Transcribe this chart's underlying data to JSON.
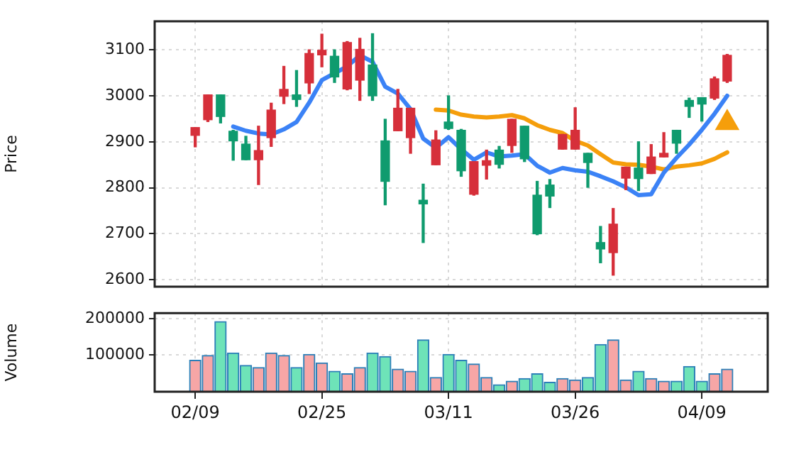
{
  "chart_data": [
    {
      "type": "candlestick",
      "ylabel": "Price",
      "grid": true,
      "tick_labels": "y",
      "categories": [
        null,
        null,
        null,
        null,
        null,
        null,
        null,
        null,
        null,
        null,
        null,
        null,
        null,
        null,
        null,
        null,
        null,
        null,
        null,
        null,
        null,
        null,
        null,
        null,
        null,
        null,
        null,
        null,
        null,
        null,
        null,
        null,
        null,
        null,
        null,
        null,
        null,
        null,
        null,
        null,
        null,
        null,
        null
      ],
      "ohlc": [
        [
          2914,
          2931,
          2889,
          2931
        ],
        [
          2948,
          3002,
          2944,
          3002
        ],
        [
          3002,
          3002,
          2941,
          2955
        ],
        [
          2923,
          2925,
          2860,
          2902
        ],
        [
          2895,
          2912,
          2861,
          2861
        ],
        [
          2861,
          2934,
          2807,
          2881
        ],
        [
          2909,
          2984,
          2890,
          2969
        ],
        [
          2999,
          3064,
          2983,
          3014
        ],
        [
          3002,
          3055,
          2977,
          2992
        ],
        [
          3028,
          3100,
          3005,
          3092
        ],
        [
          3089,
          3134,
          3063,
          3099
        ],
        [
          3086,
          3100,
          3029,
          3041
        ],
        [
          3015,
          3118,
          3013,
          3116
        ],
        [
          3034,
          3125,
          2990,
          3101
        ],
        [
          3067,
          3135,
          2990,
          3000
        ],
        [
          2902,
          2949,
          2763,
          2814
        ],
        [
          2924,
          3014,
          2924,
          2973
        ],
        [
          2909,
          2973,
          2875,
          2973
        ],
        [
          2773,
          2808,
          2681,
          2765
        ],
        [
          2850,
          2924,
          2850,
          2904
        ],
        [
          2943,
          3000,
          2927,
          2929
        ],
        [
          2925,
          2927,
          2825,
          2837
        ],
        [
          2786,
          2857,
          2784,
          2857
        ],
        [
          2849,
          2882,
          2819,
          2859
        ],
        [
          2882,
          2890,
          2843,
          2851
        ],
        [
          2892,
          2949,
          2877,
          2949
        ],
        [
          2934,
          2934,
          2857,
          2863
        ],
        [
          2784,
          2814,
          2698,
          2700
        ],
        [
          2806,
          2818,
          2757,
          2782
        ],
        [
          2884,
          2916,
          2884,
          2916
        ],
        [
          2884,
          2974,
          2884,
          2925
        ],
        [
          2875,
          2875,
          2801,
          2855
        ],
        [
          2681,
          2716,
          2637,
          2667
        ],
        [
          2659,
          2755,
          2610,
          2721
        ],
        [
          2821,
          2845,
          2796,
          2845
        ],
        [
          2843,
          2900,
          2794,
          2820
        ],
        [
          2831,
          2894,
          2831,
          2867
        ],
        [
          2867,
          2920,
          2867,
          2875
        ],
        [
          2925,
          2925,
          2875,
          2897
        ],
        [
          2990,
          2995,
          2953,
          2977
        ],
        [
          2996,
          2996,
          2945,
          2982
        ],
        [
          2995,
          3041,
          2992,
          3037
        ],
        [
          3032,
          3090,
          3029,
          3088
        ]
      ],
      "colors": [
        "#d62f3a",
        "#d62f3a",
        "#0f9b6e",
        "#0f9b6e",
        "#0f9b6e",
        "#d62f3a",
        "#d62f3a",
        "#d62f3a",
        "#0f9b6e",
        "#d62f3a",
        "#d62f3a",
        "#0f9b6e",
        "#d62f3a",
        "#d62f3a",
        "#0f9b6e",
        "#0f9b6e",
        "#d62f3a",
        "#d62f3a",
        "#0f9b6e",
        "#d62f3a",
        "#0f9b6e",
        "#0f9b6e",
        "#d62f3a",
        "#d62f3a",
        "#0f9b6e",
        "#d62f3a",
        "#0f9b6e",
        "#0f9b6e",
        "#0f9b6e",
        "#d62f3a",
        "#d62f3a",
        "#0f9b6e",
        "#0f9b6e",
        "#d62f3a",
        "#d62f3a",
        "#0f9b6e",
        "#d62f3a",
        "#d62f3a",
        "#0f9b6e",
        "#0f9b6e",
        "#0f9b6e",
        "#d62f3a",
        "#d62f3a"
      ],
      "series": [
        {
          "type": "line",
          "color": "#3b82f6",
          "values": [
            null,
            null,
            null,
            2933,
            2924,
            2918,
            2916,
            2927,
            2943,
            2985,
            3034,
            3049,
            3064,
            3088,
            3074,
            3020,
            3005,
            2971,
            2907,
            2887,
            2910,
            2884,
            2861,
            2877,
            2868,
            2870,
            2873,
            2848,
            2833,
            2843,
            2838,
            2835,
            2825,
            2814,
            2801,
            2784,
            2786,
            2833,
            2865,
            2894,
            2926,
            2961,
            3000
          ]
        },
        {
          "type": "line",
          "color": "#f59e0b",
          "values": [
            null,
            null,
            null,
            null,
            null,
            null,
            null,
            null,
            null,
            null,
            null,
            null,
            null,
            null,
            null,
            null,
            null,
            null,
            null,
            2970,
            2968,
            2959,
            2955,
            2953,
            2955,
            2958,
            2951,
            2936,
            2926,
            2919,
            2902,
            2892,
            2873,
            2855,
            2851,
            2850,
            2846,
            2840,
            2846,
            2849,
            2853,
            2863,
            2877
          ]
        },
        {
          "type": "scatter",
          "marker": "triangle",
          "color": "#f59e0b",
          "values": [
            null,
            null,
            null,
            null,
            null,
            null,
            null,
            null,
            null,
            null,
            null,
            null,
            null,
            null,
            null,
            null,
            null,
            null,
            null,
            null,
            null,
            null,
            null,
            null,
            null,
            null,
            null,
            null,
            null,
            null,
            null,
            null,
            null,
            null,
            null,
            null,
            null,
            null,
            null,
            null,
            null,
            null,
            2941
          ]
        }
      ],
      "ylim": [
        2585,
        3162
      ],
      "yticks": [
        2600,
        2700,
        2800,
        2900,
        3000,
        3100
      ]
    },
    {
      "type": "bar",
      "ylabel": "Volume",
      "grid": true,
      "categories": [
        "02/09",
        null,
        null,
        null,
        null,
        null,
        null,
        null,
        null,
        null,
        "02/25",
        null,
        null,
        null,
        null,
        null,
        null,
        null,
        null,
        null,
        "03/11",
        null,
        null,
        null,
        null,
        null,
        null,
        null,
        null,
        null,
        "03/26",
        null,
        null,
        null,
        null,
        null,
        null,
        null,
        null,
        null,
        "04/09",
        null,
        null
      ],
      "values": [
        86000,
        99000,
        192000,
        106000,
        72000,
        66000,
        106000,
        99000,
        66000,
        102000,
        79000,
        56000,
        49000,
        66000,
        106000,
        96000,
        62000,
        56000,
        142000,
        39000,
        102000,
        86000,
        76000,
        39000,
        19000,
        29000,
        36000,
        49000,
        26000,
        36000,
        32000,
        39000,
        129000,
        142000,
        32000,
        56000,
        36000,
        29000,
        29000,
        69000,
        29000,
        49000,
        62000
      ],
      "colors": [
        "#f7a6a6",
        "#f7a6a6",
        "#6ee3b8",
        "#6ee3b8",
        "#6ee3b8",
        "#f7a6a6",
        "#f7a6a6",
        "#f7a6a6",
        "#6ee3b8",
        "#f7a6a6",
        "#f7a6a6",
        "#6ee3b8",
        "#f7a6a6",
        "#f7a6a6",
        "#6ee3b8",
        "#6ee3b8",
        "#f7a6a6",
        "#f7a6a6",
        "#6ee3b8",
        "#f7a6a6",
        "#6ee3b8",
        "#6ee3b8",
        "#f7a6a6",
        "#f7a6a6",
        "#6ee3b8",
        "#f7a6a6",
        "#6ee3b8",
        "#6ee3b8",
        "#6ee3b8",
        "#f7a6a6",
        "#f7a6a6",
        "#6ee3b8",
        "#6ee3b8",
        "#f7a6a6",
        "#f7a6a6",
        "#6ee3b8",
        "#f7a6a6",
        "#f7a6a6",
        "#6ee3b8",
        "#6ee3b8",
        "#6ee3b8",
        "#f7a6a6",
        "#f7a6a6"
      ],
      "ylim": [
        0,
        215000
      ],
      "yticks": [
        100000,
        200000
      ]
    }
  ]
}
